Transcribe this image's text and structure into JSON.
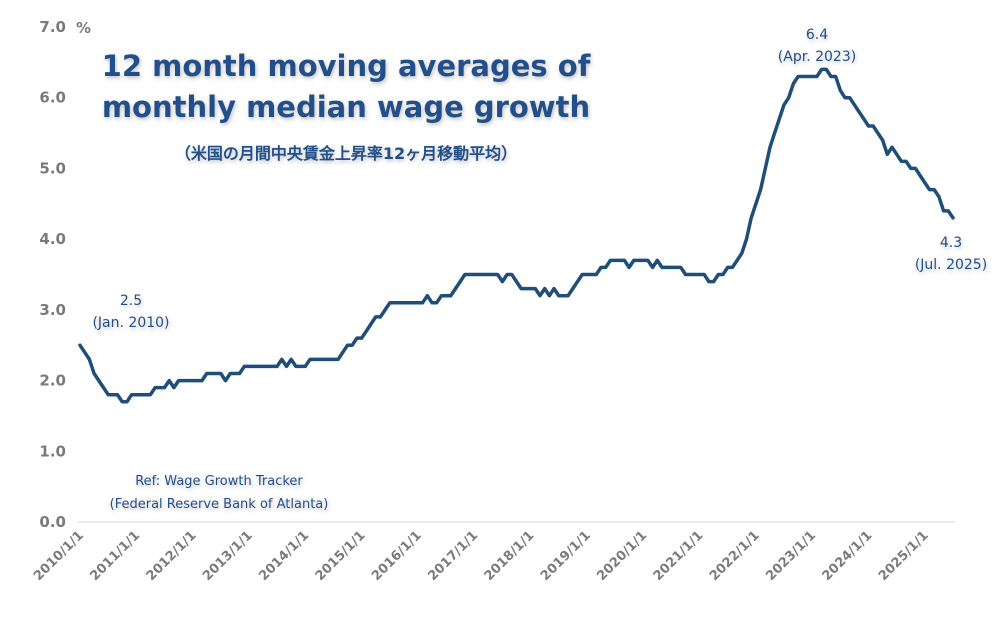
{
  "chart_data": {
    "type": "line",
    "title": "12 month moving averages of monthly median wage growth",
    "title_lines": [
      "12 month moving averages of",
      "monthly median wage growth"
    ],
    "subtitle": "（米国の月間中央賃金上昇率12ヶ月移動平均）",
    "ylabel": "%",
    "xlabel": "",
    "ylim": [
      0,
      7
    ],
    "yticks": [
      "0.0",
      "1.0",
      "2.0",
      "3.0",
      "4.0",
      "5.0",
      "6.0",
      "7.0"
    ],
    "xticks": [
      "2010/1/1",
      "2011/1/1",
      "2012/1/1",
      "2013/1/1",
      "2014/1/1",
      "2015/1/1",
      "2016/1/1",
      "2017/1/1",
      "2018/1/1",
      "2019/1/1",
      "2020/1/1",
      "2021/1/1",
      "2022/1/1",
      "2023/1/1",
      "2024/1/1",
      "2025/1/1"
    ],
    "x_start": "2010-01",
    "x_end": "2025-07",
    "x_frequency": "monthly",
    "grid": false,
    "color": "#1f4e79",
    "values": [
      2.5,
      2.4,
      2.3,
      2.1,
      2.0,
      1.9,
      1.8,
      1.8,
      1.8,
      1.7,
      1.7,
      1.8,
      1.8,
      1.8,
      1.8,
      1.8,
      1.9,
      1.9,
      1.9,
      2.0,
      1.9,
      2.0,
      2.0,
      2.0,
      2.0,
      2.0,
      2.0,
      2.1,
      2.1,
      2.1,
      2.1,
      2.0,
      2.1,
      2.1,
      2.1,
      2.2,
      2.2,
      2.2,
      2.2,
      2.2,
      2.2,
      2.2,
      2.2,
      2.3,
      2.2,
      2.3,
      2.2,
      2.2,
      2.2,
      2.3,
      2.3,
      2.3,
      2.3,
      2.3,
      2.3,
      2.3,
      2.4,
      2.5,
      2.5,
      2.6,
      2.6,
      2.7,
      2.8,
      2.9,
      2.9,
      3.0,
      3.1,
      3.1,
      3.1,
      3.1,
      3.1,
      3.1,
      3.1,
      3.1,
      3.2,
      3.1,
      3.1,
      3.2,
      3.2,
      3.2,
      3.3,
      3.4,
      3.5,
      3.5,
      3.5,
      3.5,
      3.5,
      3.5,
      3.5,
      3.5,
      3.4,
      3.5,
      3.5,
      3.4,
      3.3,
      3.3,
      3.3,
      3.3,
      3.2,
      3.3,
      3.2,
      3.3,
      3.2,
      3.2,
      3.2,
      3.3,
      3.4,
      3.5,
      3.5,
      3.5,
      3.5,
      3.6,
      3.6,
      3.7,
      3.7,
      3.7,
      3.7,
      3.6,
      3.7,
      3.7,
      3.7,
      3.7,
      3.6,
      3.7,
      3.6,
      3.6,
      3.6,
      3.6,
      3.6,
      3.5,
      3.5,
      3.5,
      3.5,
      3.5,
      3.4,
      3.4,
      3.5,
      3.5,
      3.6,
      3.6,
      3.7,
      3.8,
      4.0,
      4.3,
      4.5,
      4.7,
      5.0,
      5.3,
      5.5,
      5.7,
      5.9,
      6.0,
      6.2,
      6.3,
      6.3,
      6.3,
      6.3,
      6.3,
      6.4,
      6.4,
      6.3,
      6.3,
      6.1,
      6.0,
      6.0,
      5.9,
      5.8,
      5.7,
      5.6,
      5.6,
      5.5,
      5.4,
      5.2,
      5.3,
      5.2,
      5.1,
      5.1,
      5.0,
      5.0,
      4.9,
      4.8,
      4.7,
      4.7,
      4.6,
      4.4,
      4.4,
      4.3
    ],
    "annotations": [
      {
        "value": "2.5",
        "label": "(Jan. 2010)"
      },
      {
        "value": "6.4",
        "label": "(Apr. 2023)"
      },
      {
        "value": "4.3",
        "label": "(Jul. 2025)"
      }
    ],
    "source_lines": [
      "Ref: Wage Growth Tracker",
      "(Federal Reserve Bank of Atlanta)"
    ]
  }
}
